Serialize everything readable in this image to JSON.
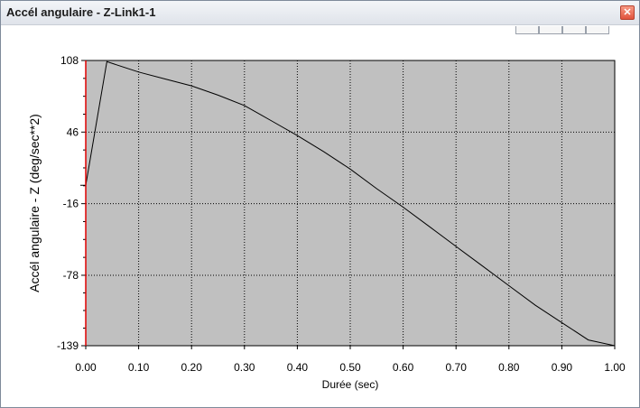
{
  "window": {
    "title": "Accél angulaire - Z-Link1-1",
    "close_glyph": "✕",
    "close_icon": "close-icon"
  },
  "chart_data": {
    "type": "line",
    "xlabel": "Durée (sec)",
    "ylabel": "Accél angulaire - Z (deg/sec**2)",
    "xlim": [
      0,
      1
    ],
    "ylim": [
      -139,
      108
    ],
    "x_ticks": [
      "0.00",
      "0.10",
      "0.20",
      "0.30",
      "0.40",
      "0.50",
      "0.60",
      "0.70",
      "0.80",
      "0.90",
      "1.00"
    ],
    "y_ticks": [
      "108",
      "46",
      "-16",
      "-78",
      "-139"
    ],
    "y_tick_values": [
      108,
      46,
      -16,
      -78,
      -139
    ],
    "grid": true,
    "background_color": "#c0c0c0",
    "line_color": "#000000",
    "axis_color": "#e00000",
    "series": [
      {
        "x": [
          0.0,
          0.0,
          0.04,
          0.1,
          0.15,
          0.2,
          0.25,
          0.3,
          0.35,
          0.4,
          0.45,
          0.5,
          0.55,
          0.6,
          0.65,
          0.7,
          0.75,
          0.8,
          0.85,
          0.9,
          0.95,
          1.0
        ],
        "y": [
          0,
          0,
          107,
          98,
          92,
          86,
          78,
          69,
          56,
          43,
          29,
          14,
          -3,
          -19,
          -36,
          -53,
          -70,
          -87,
          -104,
          -119,
          -134,
          -139
        ]
      }
    ]
  }
}
